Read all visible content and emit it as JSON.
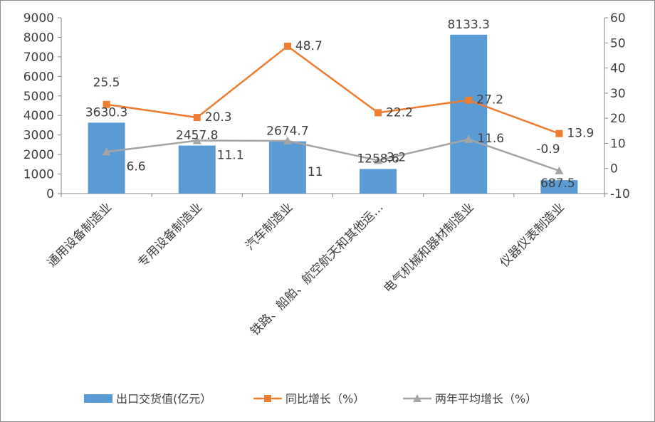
{
  "chart_data": {
    "type": "bar",
    "categories": [
      "通用设备制造业",
      "专用设备制造业",
      "汽车制造业",
      "铁路、船舶、航空航天和其他运…",
      "电气机械和器材制造业",
      "仪器仪表制造业"
    ],
    "series": [
      {
        "name": "出口交货值(亿元）",
        "type": "bar",
        "axis": "left",
        "color": "#5b9bd5",
        "values": [
          3630.3,
          2457.8,
          2674.7,
          1258.6,
          8133.3,
          687.5
        ],
        "labels": [
          "3630.3",
          "2457.8",
          "2674.7",
          "1258.6",
          "8133.3",
          "687.5"
        ]
      },
      {
        "name": "同比增长（%）",
        "type": "line",
        "axis": "right",
        "color": "#ed7d31",
        "marker": "square",
        "values": [
          25.5,
          20.3,
          48.7,
          22.2,
          27.2,
          13.9
        ],
        "labels": [
          "25.5",
          "20.3",
          "48.7",
          "22.2",
          "27.2",
          "13.9"
        ]
      },
      {
        "name": "两年平均增长（%）",
        "type": "line",
        "axis": "right",
        "color": "#a5a5a5",
        "marker": "triangle",
        "values": [
          6.6,
          11.1,
          11,
          3.2,
          11.6,
          -0.9
        ],
        "labels": [
          "6.6",
          "11.1",
          "11",
          "3.2",
          "11.6",
          "-0.9"
        ]
      }
    ],
    "y_left": {
      "min": 0,
      "max": 9000,
      "step": 1000,
      "ticks": [
        "0",
        "1000",
        "2000",
        "3000",
        "4000",
        "5000",
        "6000",
        "7000",
        "8000",
        "9000"
      ]
    },
    "y_right": {
      "min": -10,
      "max": 60,
      "step": 10,
      "ticks": [
        "-10",
        "0",
        "10",
        "20",
        "30",
        "40",
        "50",
        "60"
      ]
    },
    "legend_position": "bottom",
    "grid": false
  }
}
